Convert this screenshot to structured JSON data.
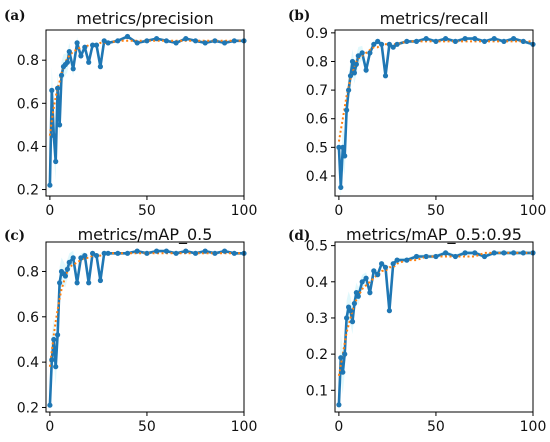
{
  "colors": {
    "series": "#1f77b4",
    "smooth": "#ff7f0e",
    "points": "#1f77b4",
    "fill": "#d7f6fb",
    "axis": "#000000"
  },
  "chart_data": [
    {
      "panel_label": "(a)",
      "title": "metrics/precision",
      "type": "line",
      "xlim": [
        -2,
        100
      ],
      "ylim": [
        0.17,
        0.94
      ],
      "xticks": [
        0,
        50,
        100
      ],
      "yticks": [
        0.2,
        0.4,
        0.6,
        0.8
      ],
      "ytick_labels": [
        "0.2",
        "0.4",
        "0.6",
        "0.8"
      ],
      "x": [
        0,
        1,
        2,
        3,
        4,
        5,
        6,
        7,
        8,
        9,
        10,
        12,
        14,
        16,
        18,
        20,
        22,
        24,
        26,
        28,
        30,
        35,
        40,
        45,
        50,
        55,
        60,
        65,
        70,
        75,
        80,
        85,
        90,
        95,
        100
      ],
      "values": [
        0.22,
        0.66,
        0.45,
        0.33,
        0.67,
        0.5,
        0.73,
        0.77,
        0.78,
        0.79,
        0.84,
        0.76,
        0.88,
        0.82,
        0.86,
        0.79,
        0.87,
        0.87,
        0.77,
        0.89,
        0.88,
        0.89,
        0.91,
        0.88,
        0.89,
        0.9,
        0.89,
        0.88,
        0.9,
        0.89,
        0.88,
        0.89,
        0.88,
        0.89,
        0.89
      ],
      "smooth": [
        0.45,
        0.52,
        0.58,
        0.63,
        0.67,
        0.7,
        0.74,
        0.77,
        0.79,
        0.81,
        0.82,
        0.84,
        0.85,
        0.86,
        0.86,
        0.87,
        0.87,
        0.87,
        0.88,
        0.88,
        0.88,
        0.89,
        0.89,
        0.89,
        0.89,
        0.89,
        0.89,
        0.89,
        0.89,
        0.89,
        0.89,
        0.89,
        0.89,
        0.89,
        0.89
      ]
    },
    {
      "panel_label": "(b)",
      "title": "metrics/recall",
      "type": "line",
      "xlim": [
        -2,
        100
      ],
      "ylim": [
        0.33,
        0.91
      ],
      "xticks": [
        0,
        50,
        100
      ],
      "yticks": [
        0.4,
        0.5,
        0.6,
        0.7,
        0.8,
        0.9
      ],
      "ytick_labels": [
        "0.4",
        "0.5",
        "0.6",
        "0.7",
        "0.8",
        "0.9"
      ],
      "x": [
        0,
        1,
        2,
        3,
        4,
        5,
        6,
        7,
        8,
        9,
        10,
        12,
        14,
        16,
        18,
        20,
        22,
        24,
        26,
        28,
        30,
        35,
        40,
        45,
        50,
        55,
        60,
        65,
        70,
        75,
        80,
        85,
        90,
        95,
        100
      ],
      "values": [
        0.5,
        0.36,
        0.5,
        0.47,
        0.63,
        0.7,
        0.75,
        0.8,
        0.76,
        0.79,
        0.82,
        0.83,
        0.77,
        0.83,
        0.86,
        0.87,
        0.86,
        0.75,
        0.86,
        0.85,
        0.86,
        0.87,
        0.87,
        0.88,
        0.87,
        0.88,
        0.87,
        0.88,
        0.88,
        0.87,
        0.88,
        0.87,
        0.88,
        0.87,
        0.86
      ],
      "smooth": [
        0.52,
        0.56,
        0.6,
        0.64,
        0.68,
        0.71,
        0.74,
        0.76,
        0.78,
        0.8,
        0.81,
        0.82,
        0.83,
        0.84,
        0.85,
        0.85,
        0.86,
        0.86,
        0.86,
        0.86,
        0.86,
        0.87,
        0.87,
        0.87,
        0.87,
        0.87,
        0.87,
        0.87,
        0.87,
        0.87,
        0.87,
        0.87,
        0.87,
        0.87,
        0.87
      ]
    },
    {
      "panel_label": "(c)",
      "title": "metrics/mAP_0.5",
      "type": "line",
      "xlim": [
        -2,
        100
      ],
      "ylim": [
        0.18,
        0.93
      ],
      "xticks": [
        0,
        50,
        100
      ],
      "yticks": [
        0.2,
        0.4,
        0.6,
        0.8
      ],
      "ytick_labels": [
        "0.2",
        "0.4",
        "0.6",
        "0.8"
      ],
      "x": [
        0,
        1,
        2,
        3,
        4,
        5,
        6,
        7,
        8,
        9,
        10,
        12,
        14,
        16,
        18,
        20,
        22,
        24,
        26,
        28,
        30,
        35,
        40,
        45,
        50,
        55,
        60,
        65,
        70,
        75,
        80,
        85,
        90,
        95,
        100
      ],
      "values": [
        0.21,
        0.41,
        0.5,
        0.38,
        0.52,
        0.75,
        0.8,
        0.79,
        0.78,
        0.81,
        0.84,
        0.86,
        0.75,
        0.86,
        0.87,
        0.75,
        0.88,
        0.87,
        0.76,
        0.88,
        0.88,
        0.88,
        0.88,
        0.89,
        0.88,
        0.89,
        0.89,
        0.88,
        0.89,
        0.88,
        0.89,
        0.88,
        0.89,
        0.88,
        0.88
      ],
      "smooth": [
        0.38,
        0.45,
        0.52,
        0.58,
        0.63,
        0.68,
        0.72,
        0.75,
        0.78,
        0.8,
        0.82,
        0.83,
        0.84,
        0.85,
        0.86,
        0.86,
        0.87,
        0.87,
        0.87,
        0.88,
        0.88,
        0.88,
        0.88,
        0.88,
        0.88,
        0.88,
        0.88,
        0.88,
        0.88,
        0.88,
        0.88,
        0.88,
        0.88,
        0.88,
        0.88
      ]
    },
    {
      "panel_label": "(d)",
      "title": "metrics/mAP_0.5:0.95",
      "type": "line",
      "xlim": [
        -2,
        100
      ],
      "ylim": [
        0.04,
        0.51
      ],
      "xticks": [
        0,
        50,
        100
      ],
      "yticks": [
        0.1,
        0.2,
        0.3,
        0.4,
        0.5
      ],
      "ytick_labels": [
        "0.1",
        "0.2",
        "0.3",
        "0.4",
        "0.5"
      ],
      "x": [
        0,
        1,
        2,
        3,
        4,
        5,
        6,
        7,
        8,
        9,
        10,
        12,
        14,
        16,
        18,
        20,
        22,
        24,
        26,
        28,
        30,
        35,
        40,
        45,
        50,
        55,
        60,
        65,
        70,
        75,
        80,
        85,
        90,
        95,
        100
      ],
      "values": [
        0.06,
        0.19,
        0.15,
        0.2,
        0.3,
        0.33,
        0.32,
        0.29,
        0.34,
        0.37,
        0.36,
        0.4,
        0.41,
        0.37,
        0.43,
        0.42,
        0.45,
        0.44,
        0.32,
        0.45,
        0.46,
        0.46,
        0.47,
        0.47,
        0.47,
        0.48,
        0.47,
        0.48,
        0.48,
        0.47,
        0.48,
        0.48,
        0.48,
        0.48,
        0.48
      ],
      "smooth": [
        0.14,
        0.17,
        0.2,
        0.23,
        0.26,
        0.28,
        0.3,
        0.32,
        0.34,
        0.35,
        0.36,
        0.38,
        0.39,
        0.4,
        0.41,
        0.42,
        0.43,
        0.43,
        0.44,
        0.44,
        0.45,
        0.46,
        0.46,
        0.47,
        0.47,
        0.47,
        0.47,
        0.47,
        0.47,
        0.48,
        0.48,
        0.48,
        0.48,
        0.48,
        0.48
      ]
    }
  ]
}
